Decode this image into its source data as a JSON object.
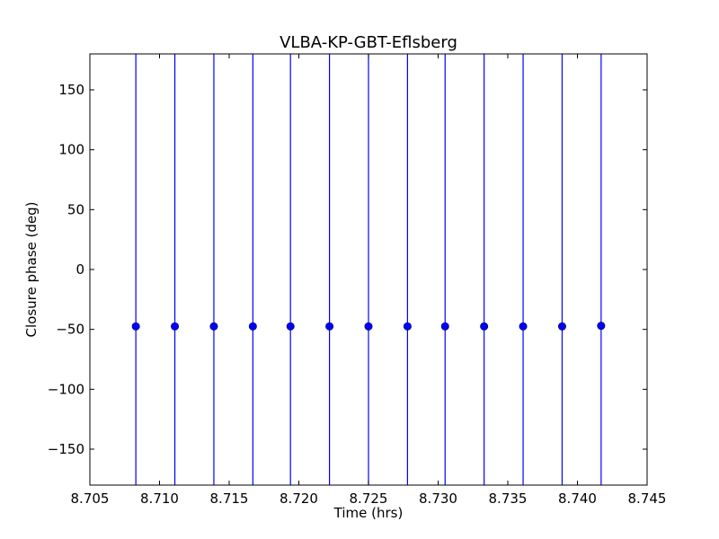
{
  "chart_data": {
    "type": "scatter",
    "title": "VLBA-KP-GBT-Eflsberg",
    "xlabel": "Time (hrs)",
    "ylabel": "Closure phase (deg)",
    "xlim": [
      8.705,
      8.745
    ],
    "ylim": [
      -180,
      180
    ],
    "xticks": [
      8.705,
      8.71,
      8.715,
      8.72,
      8.725,
      8.73,
      8.735,
      8.74,
      8.745
    ],
    "xtick_labels": [
      "8.705",
      "8.710",
      "8.715",
      "8.720",
      "8.725",
      "8.730",
      "8.735",
      "8.740",
      "8.745"
    ],
    "yticks": [
      -150,
      -100,
      -50,
      0,
      50,
      100,
      150
    ],
    "ytick_labels": [
      "−150",
      "−100",
      "−50",
      "0",
      "50",
      "100",
      "150"
    ],
    "grid": false,
    "marker_color": "#0000ff",
    "series": [
      {
        "x": [
          8.7083,
          8.7111,
          8.7139,
          8.7167,
          8.7194,
          8.7222,
          8.725,
          8.7278,
          8.7305,
          8.7333,
          8.7361,
          8.7389,
          8.7417
        ],
        "y": [
          -47.5,
          -47.5,
          -47.5,
          -47.5,
          -47.5,
          -47.5,
          -47.5,
          -47.5,
          -47.5,
          -47.5,
          -47.5,
          -47.5,
          -47
        ],
        "error_bars": "vertical, extending beyond the plot range"
      }
    ]
  }
}
